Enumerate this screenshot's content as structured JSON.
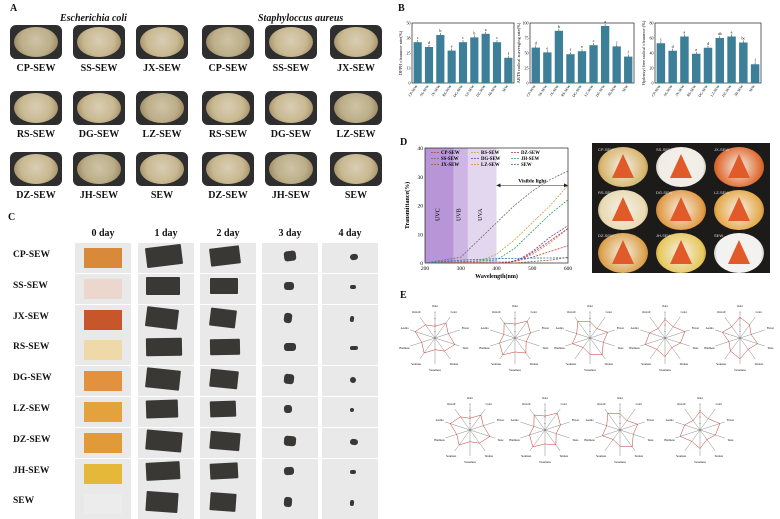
{
  "panels": {
    "a": "A",
    "b": "B",
    "c": "C",
    "d": "D",
    "e": "E"
  },
  "panel_a": {
    "organisms": [
      "Escherichia coli",
      "Staphyloccus aureus"
    ],
    "rows": [
      [
        "CP-SEW",
        "SS-SEW",
        "JX-SEW",
        "CP-SEW",
        "SS-SEW",
        "JX-SEW"
      ],
      [
        "RS-SEW",
        "DG-SEW",
        "LZ-SEW",
        "RS-SEW",
        "DG-SEW",
        "LZ-SEW"
      ],
      [
        "DZ-SEW",
        "JH-SEW",
        "SEW",
        "DZ-SEW",
        "JH-SEW",
        "SEW"
      ]
    ]
  },
  "panel_c": {
    "days": [
      "0 day",
      "1 day",
      "2 day",
      "3 day",
      "4 day"
    ],
    "samples": [
      "CP-SEW",
      "SS-SEW",
      "JX-SEW",
      "RS-SEW",
      "DG-SEW",
      "LZ-SEW",
      "DZ-SEW",
      "JH-SEW",
      "SEW"
    ],
    "film_colors": [
      "#d9893a",
      "#ecd7cf",
      "#c7562a",
      "#efd9a8",
      "#e3913c",
      "#e3a23b",
      "#e09a38",
      "#e6b83a",
      "#ececec"
    ]
  },
  "chart_data": [
    {
      "type": "bar",
      "ylabel": "DPPH clearance rate(%)",
      "ylim": [
        0,
        50
      ],
      "categories": [
        "CP-SEW",
        "SS-SEW",
        "JX-SEW",
        "RS-SEW",
        "DG-SEW",
        "LZ-SEW",
        "DZ-SEW",
        "JH-SEW",
        "SEW"
      ],
      "values": [
        34,
        30,
        40,
        27,
        34,
        38,
        41,
        34,
        21
      ],
      "letters": [
        "c",
        "d",
        "b",
        "e",
        "c",
        "b",
        "a",
        "c",
        "f"
      ],
      "bar_color": "#3d7f99"
    },
    {
      "type": "bar",
      "ylabel": "ABTS radical scavenging rate(%)",
      "ylim": [
        0,
        100
      ],
      "categories": [
        "CP-SEW",
        "SS-SEW",
        "JX-SEW",
        "RS-SEW",
        "DG-SEW",
        "LZ-SEW",
        "DZ-SEW",
        "JH-SEW",
        "SEW"
      ],
      "values": [
        59,
        51,
        87,
        48,
        53,
        63,
        95,
        61,
        44
      ],
      "letters": [
        "d",
        "e",
        "b",
        "f",
        "e",
        "c",
        "a",
        "c",
        "f"
      ],
      "bar_color": "#3d7f99"
    },
    {
      "type": "bar",
      "ylabel": "Hydroxyl free radical clearance (%)",
      "ylim": [
        0,
        80
      ],
      "categories": [
        "CP-SEW",
        "SS-SEW",
        "JX-SEW",
        "RS-SEW",
        "DG-SEW",
        "LZ-SEW",
        "DZ-SEW",
        "JH-SEW",
        "SEW"
      ],
      "values": [
        53,
        43,
        62,
        39,
        47,
        60,
        62,
        54,
        25
      ],
      "letters": [
        "c",
        "d",
        "a",
        "e",
        "d",
        "ab",
        "a",
        "bc",
        "f"
      ],
      "bar_color": "#3d7f99"
    },
    {
      "type": "line",
      "xlabel": "Wavelength(nm)",
      "ylabel": "Transmittance(%)",
      "xlim": [
        200,
        600
      ],
      "ylim": [
        0,
        40
      ],
      "xticks": [
        200,
        300,
        400,
        500,
        600
      ],
      "yticks": [
        0,
        10,
        20,
        30,
        40
      ],
      "bands": [
        {
          "label": "UVC",
          "from": 200,
          "to": 280,
          "color": "#b795d6"
        },
        {
          "label": "UVB",
          "from": 280,
          "to": 320,
          "color": "#cdb6e3"
        },
        {
          "label": "UVA",
          "from": 320,
          "to": 400,
          "color": "#e3d6ef"
        }
      ],
      "annotation": "Visible light",
      "series": [
        {
          "name": "CP-SEW",
          "color": "#c0392b",
          "x": [
            200,
            400,
            450,
            500,
            550,
            600
          ],
          "y": [
            0,
            0,
            0.5,
            2,
            4,
            6
          ]
        },
        {
          "name": "SS-SEW",
          "color": "#6c6c6c",
          "x": [
            200,
            300,
            350,
            400,
            450,
            500,
            550,
            600
          ],
          "y": [
            0,
            2,
            8,
            14,
            20,
            25,
            29,
            32
          ]
        },
        {
          "name": "JX-SEW",
          "color": "#a05a2c",
          "x": [
            200,
            450,
            500,
            550,
            600
          ],
          "y": [
            0,
            0,
            0.5,
            1,
            2
          ]
        },
        {
          "name": "RS-SEW",
          "color": "#c8a23a",
          "x": [
            200,
            350,
            400,
            450,
            500,
            550,
            600
          ],
          "y": [
            0,
            0.5,
            3,
            8,
            14,
            20,
            27
          ]
        },
        {
          "name": "DG-SEW",
          "color": "#7a3f8c",
          "x": [
            200,
            420,
            460,
            500,
            550,
            600
          ],
          "y": [
            0,
            0,
            1,
            4,
            9,
            13
          ]
        },
        {
          "name": "LZ-SEW",
          "color": "#d98a33",
          "x": [
            200,
            450,
            500,
            550,
            600
          ],
          "y": [
            0,
            0.5,
            3,
            7,
            12
          ]
        },
        {
          "name": "DZ-SEW",
          "color": "#9b2f6b",
          "x": [
            200,
            430,
            480,
            530,
            600
          ],
          "y": [
            0,
            0,
            2,
            6,
            12
          ]
        },
        {
          "name": "JH-SEW",
          "color": "#3a9a5a",
          "x": [
            200,
            400,
            450,
            500,
            550,
            600
          ],
          "y": [
            0,
            1,
            5,
            11,
            17,
            22
          ]
        },
        {
          "name": "SEW",
          "color": "#2c6fb5",
          "x": [
            200,
            300,
            400,
            500,
            600
          ],
          "y": [
            0,
            1,
            1.5,
            1.7,
            1.8
          ]
        }
      ]
    }
  ],
  "panel_d_photos": {
    "labels": [
      "CP-SEW",
      "SS-SEW",
      "JX-SEW",
      "RS-SEW",
      "DG-SEW",
      "LZ-SEW",
      "DZ-SEW",
      "JH-SEW",
      "SEW"
    ],
    "tints": [
      "#d8b46b",
      "#f0ece6",
      "#e06a30",
      "#e8d9b0",
      "#e29a45",
      "#e5a94a",
      "#dca04a",
      "#e7c75a",
      "#f2f2f2"
    ]
  },
  "panel_e": {
    "axis_labels": [
      "Odor",
      "Color",
      "Flavor",
      "Taste",
      "Texture",
      "Sweetness",
      "Sourness",
      "Hardness",
      "Aroma",
      "Overall"
    ]
  }
}
